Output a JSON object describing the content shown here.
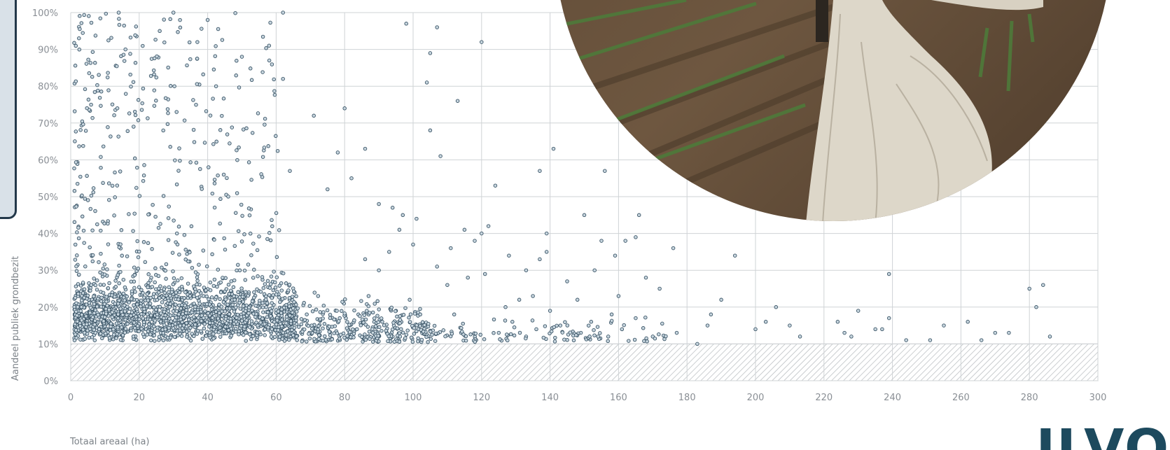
{
  "logo": {
    "text": "ILVO"
  },
  "chart_data": {
    "type": "scatter",
    "title": "",
    "xlabel": "Totaal areaal (ha)",
    "ylabel": "Aandeel publiek grondbezit",
    "xlim": [
      0,
      300
    ],
    "ylim": [
      0,
      100
    ],
    "x_ticks": [
      0,
      20,
      40,
      60,
      80,
      100,
      120,
      140,
      160,
      180,
      200,
      220,
      240,
      260,
      280,
      300
    ],
    "x_tick_labels": [
      "0",
      "20",
      "40",
      "60",
      "80",
      "100",
      "120",
      "140",
      "160",
      "180",
      "200",
      "220",
      "240",
      "260",
      "280",
      "300"
    ],
    "y_ticks": [
      0,
      10,
      20,
      30,
      40,
      50,
      60,
      70,
      80,
      90,
      100
    ],
    "y_tick_labels": [
      "0%",
      "10%",
      "20%",
      "30%",
      "40%",
      "50%",
      "60%",
      "70%",
      "80%",
      "90%",
      "100%"
    ],
    "grid": true,
    "excluded_band": [
      0,
      10
    ],
    "marker_fill": "#c8d6df",
    "marker_stroke": "#3a5466",
    "series": [
      {
        "values": [
          [
            98,
            97
          ],
          [
            107,
            96
          ],
          [
            105,
            89
          ],
          [
            120,
            92
          ],
          [
            113,
            76
          ],
          [
            104,
            81
          ],
          [
            105,
            68
          ],
          [
            108,
            61
          ],
          [
            141,
            63
          ],
          [
            137,
            57
          ],
          [
            156,
            57
          ],
          [
            124,
            53
          ],
          [
            122,
            42
          ],
          [
            120,
            40
          ],
          [
            118,
            38
          ],
          [
            128,
            34
          ],
          [
            133,
            30
          ],
          [
            137,
            33
          ],
          [
            150,
            45
          ],
          [
            166,
            45
          ],
          [
            176,
            36
          ],
          [
            155,
            38
          ],
          [
            159,
            34
          ],
          [
            162,
            38
          ],
          [
            165,
            39
          ],
          [
            139,
            40
          ],
          [
            139,
            35
          ],
          [
            145,
            27
          ],
          [
            153,
            30
          ],
          [
            168,
            28
          ],
          [
            172,
            25
          ],
          [
            135,
            23
          ],
          [
            148,
            22
          ],
          [
            160,
            23
          ],
          [
            158,
            18
          ],
          [
            186,
            15
          ],
          [
            190,
            22
          ],
          [
            194,
            34
          ],
          [
            200,
            14
          ],
          [
            206,
            20
          ],
          [
            210,
            15
          ],
          [
            230,
            19
          ],
          [
            235,
            14
          ],
          [
            239,
            17
          ],
          [
            239,
            29
          ],
          [
            224,
            16
          ],
          [
            226,
            13
          ],
          [
            237,
            14
          ],
          [
            251,
            11
          ],
          [
            255,
            15
          ],
          [
            262,
            16
          ],
          [
            270,
            13
          ],
          [
            274,
            13
          ],
          [
            280,
            25
          ],
          [
            282,
            20
          ],
          [
            284,
            26
          ],
          [
            286,
            12
          ],
          [
            183,
            10
          ],
          [
            177,
            13
          ],
          [
            170,
            12
          ],
          [
            187,
            18
          ],
          [
            203,
            16
          ],
          [
            266,
            11
          ],
          [
            213,
            12
          ],
          [
            228,
            12
          ],
          [
            244,
            11
          ],
          [
            62,
            100
          ],
          [
            14,
            100
          ],
          [
            30,
            100
          ],
          [
            16,
            90
          ],
          [
            40,
            98
          ],
          [
            37,
            92
          ],
          [
            26,
            95
          ],
          [
            50,
            88
          ],
          [
            58,
            87
          ],
          [
            62,
            82
          ],
          [
            71,
            72
          ],
          [
            80,
            74
          ],
          [
            78,
            62
          ],
          [
            86,
            63
          ],
          [
            75,
            52
          ],
          [
            64,
            57
          ],
          [
            82,
            55
          ],
          [
            90,
            48
          ],
          [
            94,
            47
          ],
          [
            97,
            45
          ],
          [
            101,
            44
          ],
          [
            100,
            37
          ],
          [
            96,
            41
          ],
          [
            111,
            36
          ],
          [
            115,
            41
          ],
          [
            86,
            33
          ],
          [
            90,
            30
          ],
          [
            93,
            35
          ],
          [
            107,
            31
          ],
          [
            110,
            26
          ],
          [
            116,
            28
          ],
          [
            121,
            29
          ],
          [
            127,
            20
          ],
          [
            131,
            22
          ],
          [
            140,
            19
          ],
          [
            143,
            15
          ],
          [
            149,
            13
          ],
          [
            152,
            16
          ],
          [
            157,
            12
          ],
          [
            161,
            14
          ],
          [
            165,
            17
          ],
          [
            118,
            11
          ],
          [
            125,
            13
          ],
          [
            129,
            16
          ],
          [
            133,
            12
          ],
          [
            136,
            14
          ],
          [
            112,
            18
          ],
          [
            114,
            13
          ],
          [
            103,
            15
          ],
          [
            99,
            22
          ],
          [
            95,
            19
          ],
          [
            91,
            16
          ],
          [
            87,
            23
          ],
          [
            84,
            18
          ]
        ]
      }
    ]
  }
}
